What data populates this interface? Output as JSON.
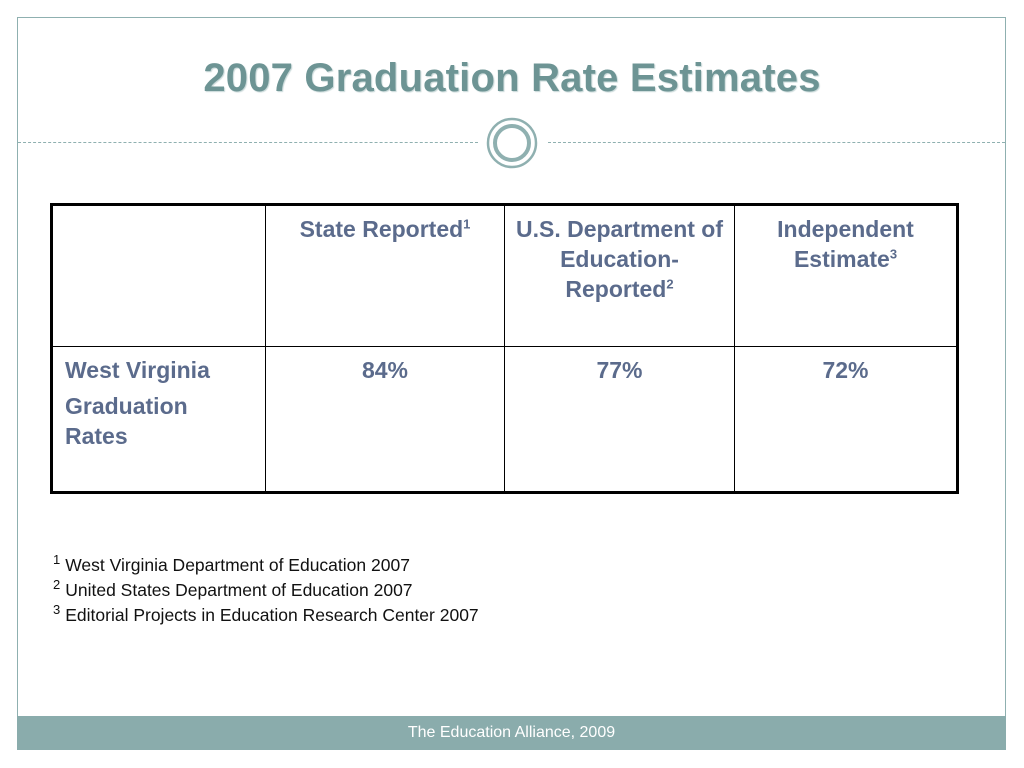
{
  "slide": {
    "title": "2007 Graduation Rate Estimates",
    "accent_color": "#6d9494",
    "footer_color": "#8aacac"
  },
  "table": {
    "headers": [
      "",
      {
        "text": "State Reported",
        "sup": "1"
      },
      {
        "text": "U.S. Department of Education-Reported",
        "sup": "2"
      },
      {
        "text": "Independent Estimate",
        "sup": "3"
      }
    ],
    "row": {
      "label_line1": "West Virginia",
      "label_line2": "Graduation Rates",
      "values": [
        "84%",
        "77%",
        "72%"
      ]
    }
  },
  "footnotes": [
    {
      "num": "1",
      "text": "West Virginia Department of Education 2007"
    },
    {
      "num": "2",
      "text": "United States Department of Education 2007"
    },
    {
      "num": "3",
      "text": "Editorial Projects in Education Research Center 2007"
    }
  ],
  "footer": {
    "text": "The Education Alliance, 2009"
  }
}
